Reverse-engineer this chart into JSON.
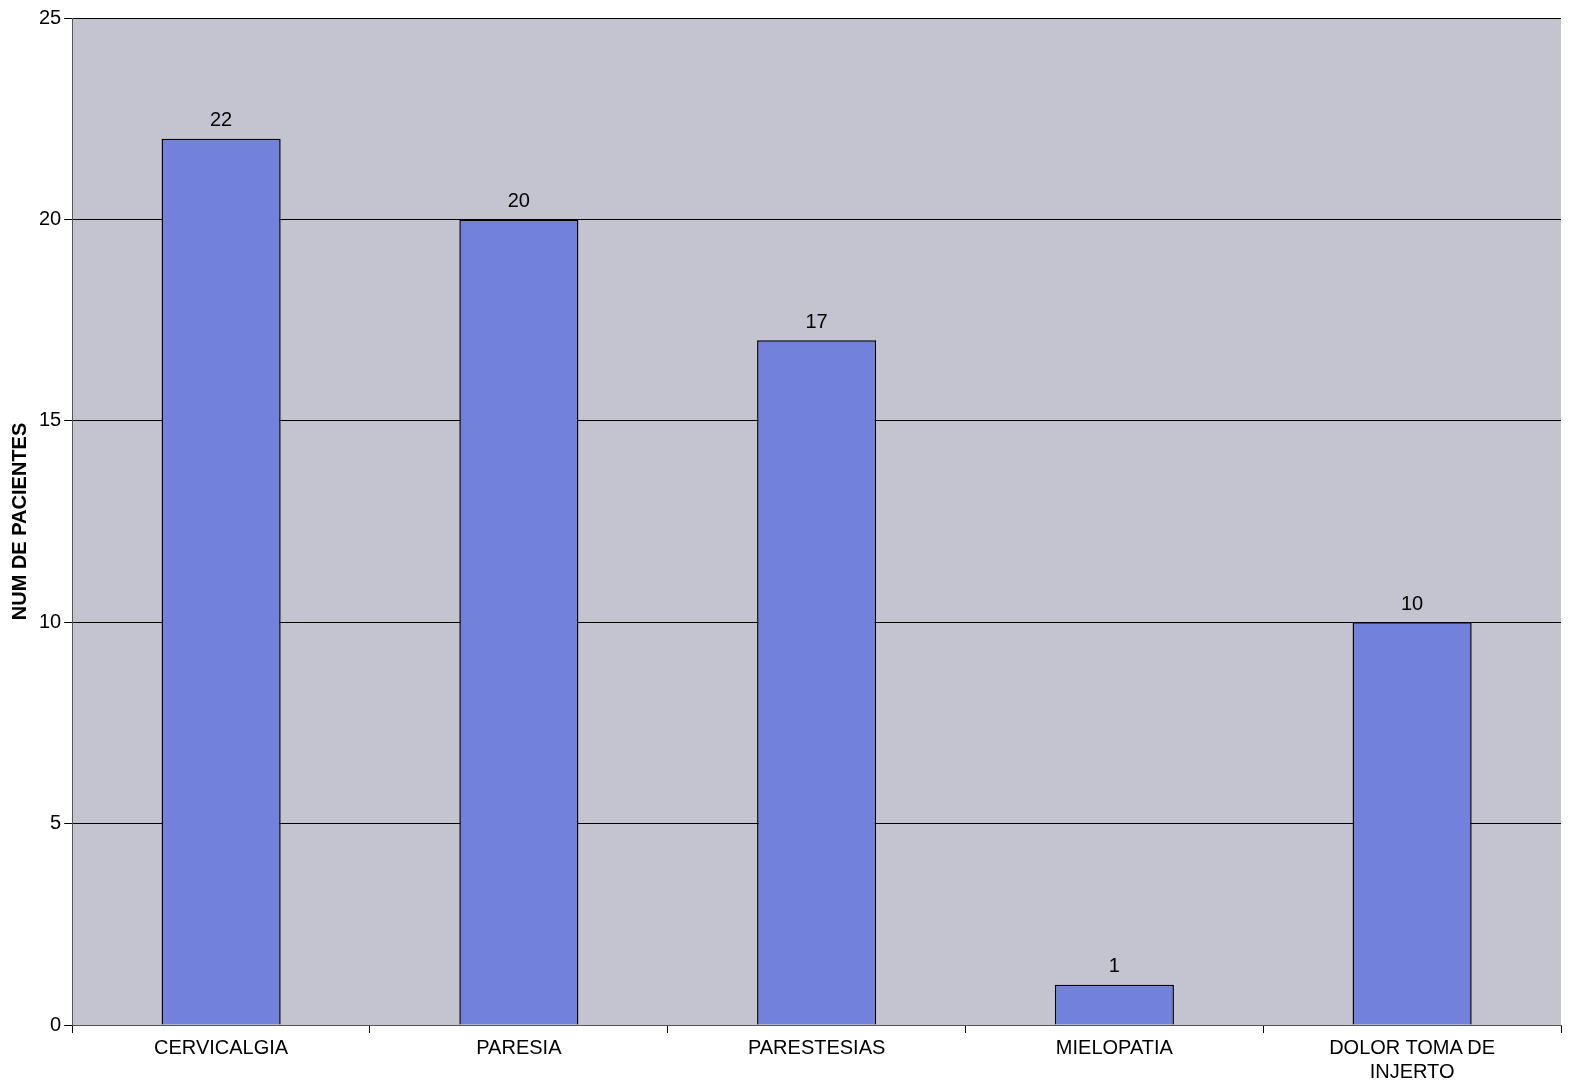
{
  "chart_data": {
    "type": "bar",
    "ylabel": "NUM DE PACIENTES",
    "categories": [
      "CERVICALGIA",
      "PARESIA",
      "PARESTESIAS",
      "MIELOPATIA",
      "DOLOR TOMA DE INJERTO"
    ],
    "values": [
      22,
      20,
      17,
      1,
      10
    ],
    "color": "#7282dc",
    "ylim": [
      0,
      25
    ],
    "yticks": [
      0,
      5,
      10,
      15,
      20,
      25
    ],
    "grid": "y",
    "data_labels": true,
    "legend": false
  }
}
